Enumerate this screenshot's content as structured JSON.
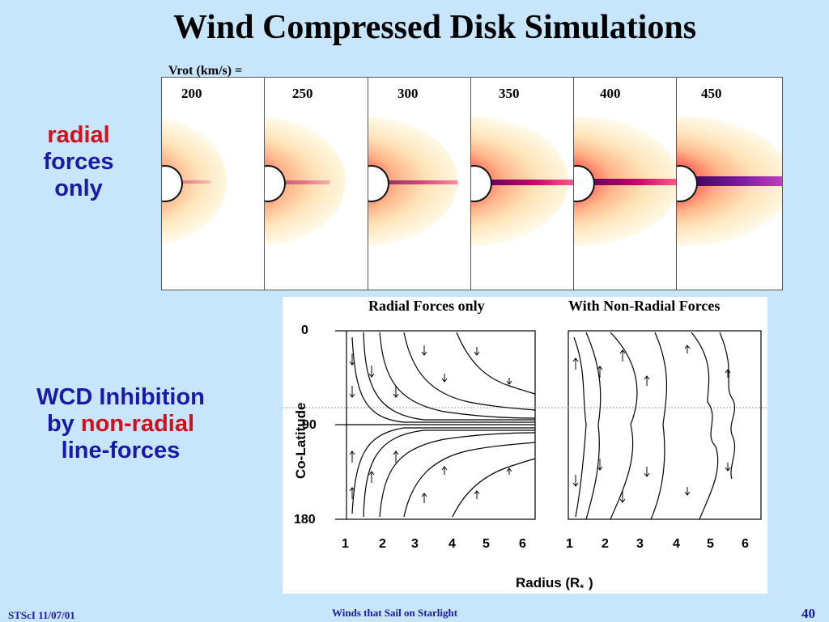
{
  "slide": {
    "title": "Wind Compressed Disk Simulations",
    "vrot_label": "Vrot (km/s) =",
    "vrot_values": [
      "200",
      "250",
      "300",
      "350",
      "400",
      "450"
    ],
    "side_label_1": {
      "word1": "radial",
      "word2": "forces",
      "word3": "only"
    },
    "side_label_2": {
      "line1": "WCD Inhibition",
      "line2_prefix": "by",
      "line2_red": "non-radial",
      "line3": "line-forces"
    },
    "plot": {
      "left_title": "Radial Forces only",
      "right_title": "With Non-Radial Forces",
      "ylabel": "Co-Latitude",
      "xlabel": "Radius (R",
      "xlabel_sub": "*",
      "xlabel_close": ")",
      "yticks": [
        "0",
        "90",
        "180"
      ],
      "xticks": [
        "1",
        "2",
        "3",
        "4",
        "5",
        "6"
      ]
    },
    "footer": {
      "left": "STScI 11/07/01",
      "center": "Winds that Sail on Starlight",
      "page": "40"
    },
    "colors": {
      "background": "#c8e6fb",
      "accent_blue": "#1a1aa8",
      "accent_red": "#d0101c"
    }
  }
}
